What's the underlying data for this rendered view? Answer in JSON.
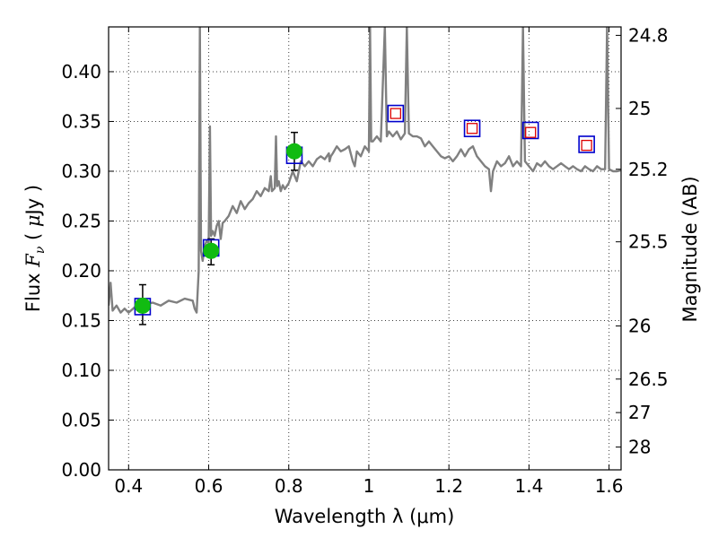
{
  "chart_data": {
    "type": "scatter",
    "xlabel": "Wavelength  λ (μm)",
    "ylabel_left": "Flux  F_ν  ( μJy )",
    "ylabel_left_parts": {
      "prefix": "Flux  ",
      "symbol": "F",
      "sub": "ν",
      "unit_open": "  ( ",
      "unit_mu": "μ",
      "unit_rest": "Jy )"
    },
    "ylabel_right": "Magnitude (AB)",
    "xlim": [
      0.35,
      1.63
    ],
    "ylim": [
      0.0,
      0.445
    ],
    "x_ticks": [
      0.4,
      0.6,
      0.8,
      1.0,
      1.2,
      1.4,
      1.6
    ],
    "x_tick_labels": [
      "0.4",
      "0.6",
      "0.8",
      "1",
      "1.2",
      "1.4",
      "1.6"
    ],
    "y_ticks": [
      0.0,
      0.05,
      0.1,
      0.15,
      0.2,
      0.25,
      0.3,
      0.35,
      0.4
    ],
    "y_tick_labels": [
      "0.00",
      "0.05",
      "0.10",
      "0.15",
      "0.20",
      "0.25",
      "0.30",
      "0.35",
      "0.40"
    ],
    "right_axis_labels": [
      "24.8",
      "25",
      "25.2",
      "25.5",
      "26",
      "26.5",
      "27",
      "28"
    ],
    "grid": true,
    "colors": {
      "spectrum": "#808080",
      "observed": "#11bb11",
      "model_box": "#0000cc",
      "prediction": "#dd0000",
      "errorbar": "#000000"
    },
    "spectrum": [
      [
        0.35,
        0.165
      ],
      [
        0.355,
        0.188
      ],
      [
        0.36,
        0.16
      ],
      [
        0.37,
        0.165
      ],
      [
        0.38,
        0.158
      ],
      [
        0.39,
        0.162
      ],
      [
        0.4,
        0.158
      ],
      [
        0.42,
        0.165
      ],
      [
        0.44,
        0.166
      ],
      [
        0.46,
        0.168
      ],
      [
        0.48,
        0.165
      ],
      [
        0.5,
        0.17
      ],
      [
        0.52,
        0.168
      ],
      [
        0.54,
        0.172
      ],
      [
        0.56,
        0.17
      ],
      [
        0.565,
        0.162
      ],
      [
        0.57,
        0.158
      ],
      [
        0.575,
        0.2
      ],
      [
        0.578,
        0.445
      ],
      [
        0.581,
        0.22
      ],
      [
        0.585,
        0.21
      ],
      [
        0.59,
        0.225
      ],
      [
        0.595,
        0.23
      ],
      [
        0.6,
        0.228
      ],
      [
        0.603,
        0.345
      ],
      [
        0.606,
        0.235
      ],
      [
        0.61,
        0.24
      ],
      [
        0.615,
        0.235
      ],
      [
        0.62,
        0.245
      ],
      [
        0.625,
        0.25
      ],
      [
        0.63,
        0.232
      ],
      [
        0.635,
        0.248
      ],
      [
        0.64,
        0.25
      ],
      [
        0.65,
        0.255
      ],
      [
        0.66,
        0.265
      ],
      [
        0.67,
        0.258
      ],
      [
        0.68,
        0.27
      ],
      [
        0.69,
        0.262
      ],
      [
        0.7,
        0.268
      ],
      [
        0.71,
        0.272
      ],
      [
        0.72,
        0.28
      ],
      [
        0.73,
        0.275
      ],
      [
        0.74,
        0.283
      ],
      [
        0.75,
        0.28
      ],
      [
        0.755,
        0.295
      ],
      [
        0.758,
        0.28
      ],
      [
        0.765,
        0.283
      ],
      [
        0.768,
        0.335
      ],
      [
        0.771,
        0.285
      ],
      [
        0.775,
        0.29
      ],
      [
        0.78,
        0.28
      ],
      [
        0.785,
        0.286
      ],
      [
        0.79,
        0.282
      ],
      [
        0.8,
        0.288
      ],
      [
        0.81,
        0.3
      ],
      [
        0.82,
        0.29
      ],
      [
        0.83,
        0.31
      ],
      [
        0.84,
        0.305
      ],
      [
        0.85,
        0.31
      ],
      [
        0.86,
        0.305
      ],
      [
        0.87,
        0.312
      ],
      [
        0.88,
        0.315
      ],
      [
        0.89,
        0.312
      ],
      [
        0.9,
        0.318
      ],
      [
        0.902,
        0.31
      ],
      [
        0.905,
        0.315
      ],
      [
        0.91,
        0.318
      ],
      [
        0.92,
        0.325
      ],
      [
        0.93,
        0.32
      ],
      [
        0.94,
        0.322
      ],
      [
        0.95,
        0.325
      ],
      [
        0.96,
        0.31
      ],
      [
        0.965,
        0.305
      ],
      [
        0.97,
        0.32
      ],
      [
        0.98,
        0.315
      ],
      [
        0.99,
        0.325
      ],
      [
        1.0,
        0.32
      ],
      [
        1.003,
        0.445
      ],
      [
        1.006,
        0.33
      ],
      [
        1.01,
        0.33
      ],
      [
        1.02,
        0.335
      ],
      [
        1.03,
        0.33
      ],
      [
        1.04,
        0.445
      ],
      [
        1.045,
        0.335
      ],
      [
        1.05,
        0.34
      ],
      [
        1.06,
        0.335
      ],
      [
        1.07,
        0.34
      ],
      [
        1.08,
        0.332
      ],
      [
        1.09,
        0.338
      ],
      [
        1.095,
        0.445
      ],
      [
        1.1,
        0.338
      ],
      [
        1.11,
        0.335
      ],
      [
        1.12,
        0.335
      ],
      [
        1.13,
        0.333
      ],
      [
        1.14,
        0.325
      ],
      [
        1.15,
        0.33
      ],
      [
        1.16,
        0.325
      ],
      [
        1.17,
        0.32
      ],
      [
        1.18,
        0.315
      ],
      [
        1.19,
        0.313
      ],
      [
        1.2,
        0.315
      ],
      [
        1.21,
        0.31
      ],
      [
        1.22,
        0.315
      ],
      [
        1.23,
        0.322
      ],
      [
        1.24,
        0.315
      ],
      [
        1.25,
        0.322
      ],
      [
        1.26,
        0.325
      ],
      [
        1.27,
        0.315
      ],
      [
        1.28,
        0.31
      ],
      [
        1.29,
        0.305
      ],
      [
        1.3,
        0.302
      ],
      [
        1.305,
        0.28
      ],
      [
        1.31,
        0.3
      ],
      [
        1.32,
        0.31
      ],
      [
        1.33,
        0.305
      ],
      [
        1.34,
        0.308
      ],
      [
        1.35,
        0.315
      ],
      [
        1.36,
        0.305
      ],
      [
        1.37,
        0.31
      ],
      [
        1.38,
        0.305
      ],
      [
        1.385,
        0.445
      ],
      [
        1.39,
        0.31
      ],
      [
        1.4,
        0.305
      ],
      [
        1.41,
        0.3
      ],
      [
        1.42,
        0.308
      ],
      [
        1.43,
        0.305
      ],
      [
        1.44,
        0.31
      ],
      [
        1.45,
        0.305
      ],
      [
        1.46,
        0.302
      ],
      [
        1.47,
        0.305
      ],
      [
        1.48,
        0.308
      ],
      [
        1.49,
        0.305
      ],
      [
        1.5,
        0.302
      ],
      [
        1.51,
        0.305
      ],
      [
        1.52,
        0.302
      ],
      [
        1.53,
        0.3
      ],
      [
        1.54,
        0.305
      ],
      [
        1.55,
        0.302
      ],
      [
        1.56,
        0.3
      ],
      [
        1.57,
        0.305
      ],
      [
        1.58,
        0.302
      ],
      [
        1.59,
        0.302
      ],
      [
        1.595,
        0.445
      ],
      [
        1.6,
        0.302
      ],
      [
        1.61,
        0.3
      ],
      [
        1.62,
        0.3
      ],
      [
        1.63,
        0.301
      ]
    ],
    "observed_points": [
      {
        "x": 0.435,
        "y": 0.165,
        "err_low": 0.146,
        "err_high": 0.186
      },
      {
        "x": 0.606,
        "y": 0.22,
        "err_low": 0.206,
        "err_high": 0.232
      },
      {
        "x": 0.814,
        "y": 0.32,
        "err_low": 0.301,
        "err_high": 0.339
      }
    ],
    "model_boxes": [
      {
        "x": 0.435,
        "y": 0.164
      },
      {
        "x": 0.606,
        "y": 0.223
      },
      {
        "x": 0.814,
        "y": 0.316
      },
      {
        "x": 1.067,
        "y": 0.358
      },
      {
        "x": 1.258,
        "y": 0.343
      },
      {
        "x": 1.404,
        "y": 0.341
      },
      {
        "x": 1.544,
        "y": 0.327
      }
    ],
    "predicted_points": [
      {
        "x": 1.067,
        "y": 0.358
      },
      {
        "x": 1.258,
        "y": 0.343
      },
      {
        "x": 1.404,
        "y": 0.339
      },
      {
        "x": 1.544,
        "y": 0.326
      }
    ]
  }
}
